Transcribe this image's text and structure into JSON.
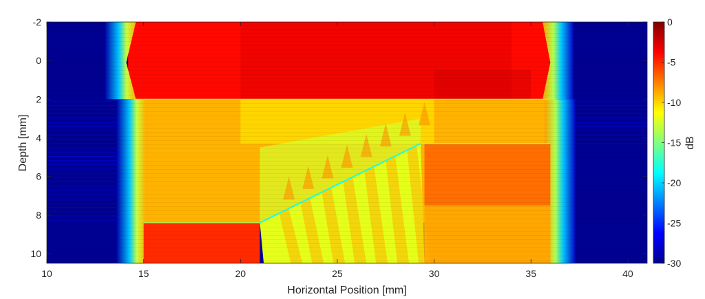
{
  "chart_data": {
    "type": "heatmap",
    "title": "",
    "xlabel": "Horizontal Position [mm]",
    "ylabel": "Depth [mm]",
    "colorbar_label": "dB",
    "colormap": "jet",
    "xlim": [
      10,
      41
    ],
    "ylim": [
      10.5,
      -2
    ],
    "clim": [
      -30,
      0
    ],
    "x_ticks": [
      10,
      15,
      20,
      25,
      30,
      35,
      40
    ],
    "y_ticks": [
      -2,
      0,
      2,
      4,
      6,
      8,
      10
    ],
    "colorbar_ticks": [
      0,
      -5,
      -10,
      -15,
      -20,
      -25,
      -30
    ],
    "regions": [
      {
        "name": "water-path",
        "x": [
          13.5,
          36.5
        ],
        "y": [
          -2,
          2
        ],
        "level_db": -4
      },
      {
        "name": "upper-layer",
        "x": [
          14.5,
          36.5
        ],
        "y": [
          2,
          8.4
        ],
        "level_db": -9
      },
      {
        "name": "lower-left-block",
        "x": [
          15,
          21
        ],
        "y": [
          8.4,
          10.5
        ],
        "level_db": -5
      },
      {
        "name": "right-block",
        "x": [
          29.5,
          36
        ],
        "y": [
          4.3,
          10.5
        ],
        "level_db": -7
      },
      {
        "name": "slanted-interface",
        "from": [
          21,
          8.4
        ],
        "to": [
          29.3,
          4.3
        ],
        "level_db": -18
      }
    ],
    "grid": false,
    "legend": "colorbar-right"
  }
}
